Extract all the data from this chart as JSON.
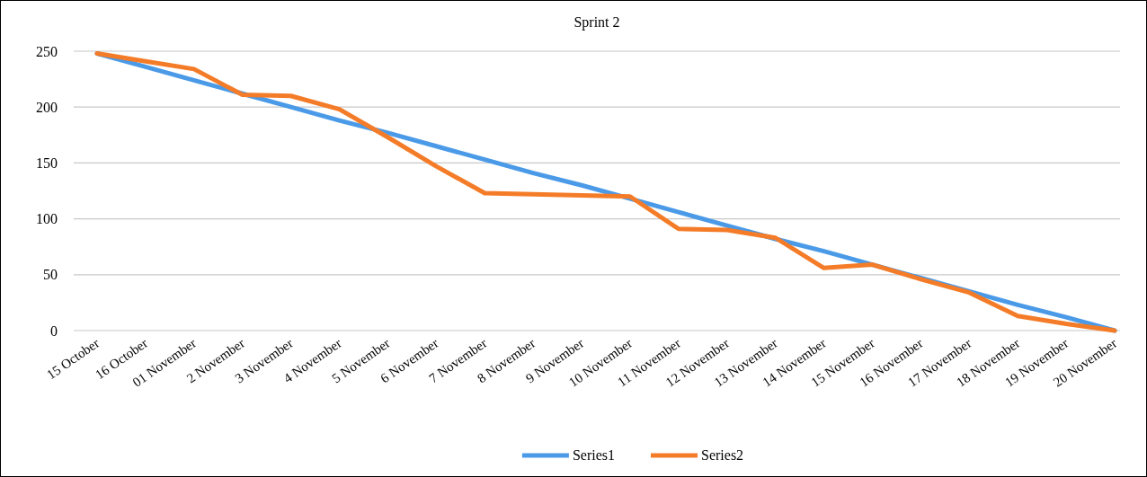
{
  "chart_data": {
    "type": "line",
    "title": "Sprint 2",
    "categories": [
      "15 October",
      "16 October",
      "01 November",
      "2 November",
      "3 November",
      "4 November",
      "5 November",
      "6 November",
      "7 November",
      "8 November",
      "9 November",
      "10 November",
      "11 November",
      "12 November",
      "13 November",
      "14 November",
      "15 November",
      "16 November",
      "17 November",
      "18 November",
      "19 November",
      "20 November"
    ],
    "series": [
      {
        "name": "Series1",
        "color": "#4a9ae8",
        "values": [
          248,
          236,
          224,
          212,
          200,
          188,
          177,
          165,
          153,
          141,
          130,
          118,
          106,
          94,
          82,
          71,
          59,
          47,
          35,
          23,
          12,
          0
        ]
      },
      {
        "name": "Series2",
        "color": "#f47c28",
        "values": [
          248,
          241,
          234,
          211,
          210,
          198,
          173,
          147,
          123,
          122,
          121,
          120,
          91,
          90,
          83,
          56,
          59,
          46,
          34,
          13,
          6,
          0
        ]
      }
    ],
    "ylim": [
      0,
      250
    ],
    "yticks": [
      0,
      50,
      100,
      150,
      200,
      250
    ],
    "grid": "y",
    "legend": "bottom",
    "line_style": "solid",
    "marker": "none"
  }
}
